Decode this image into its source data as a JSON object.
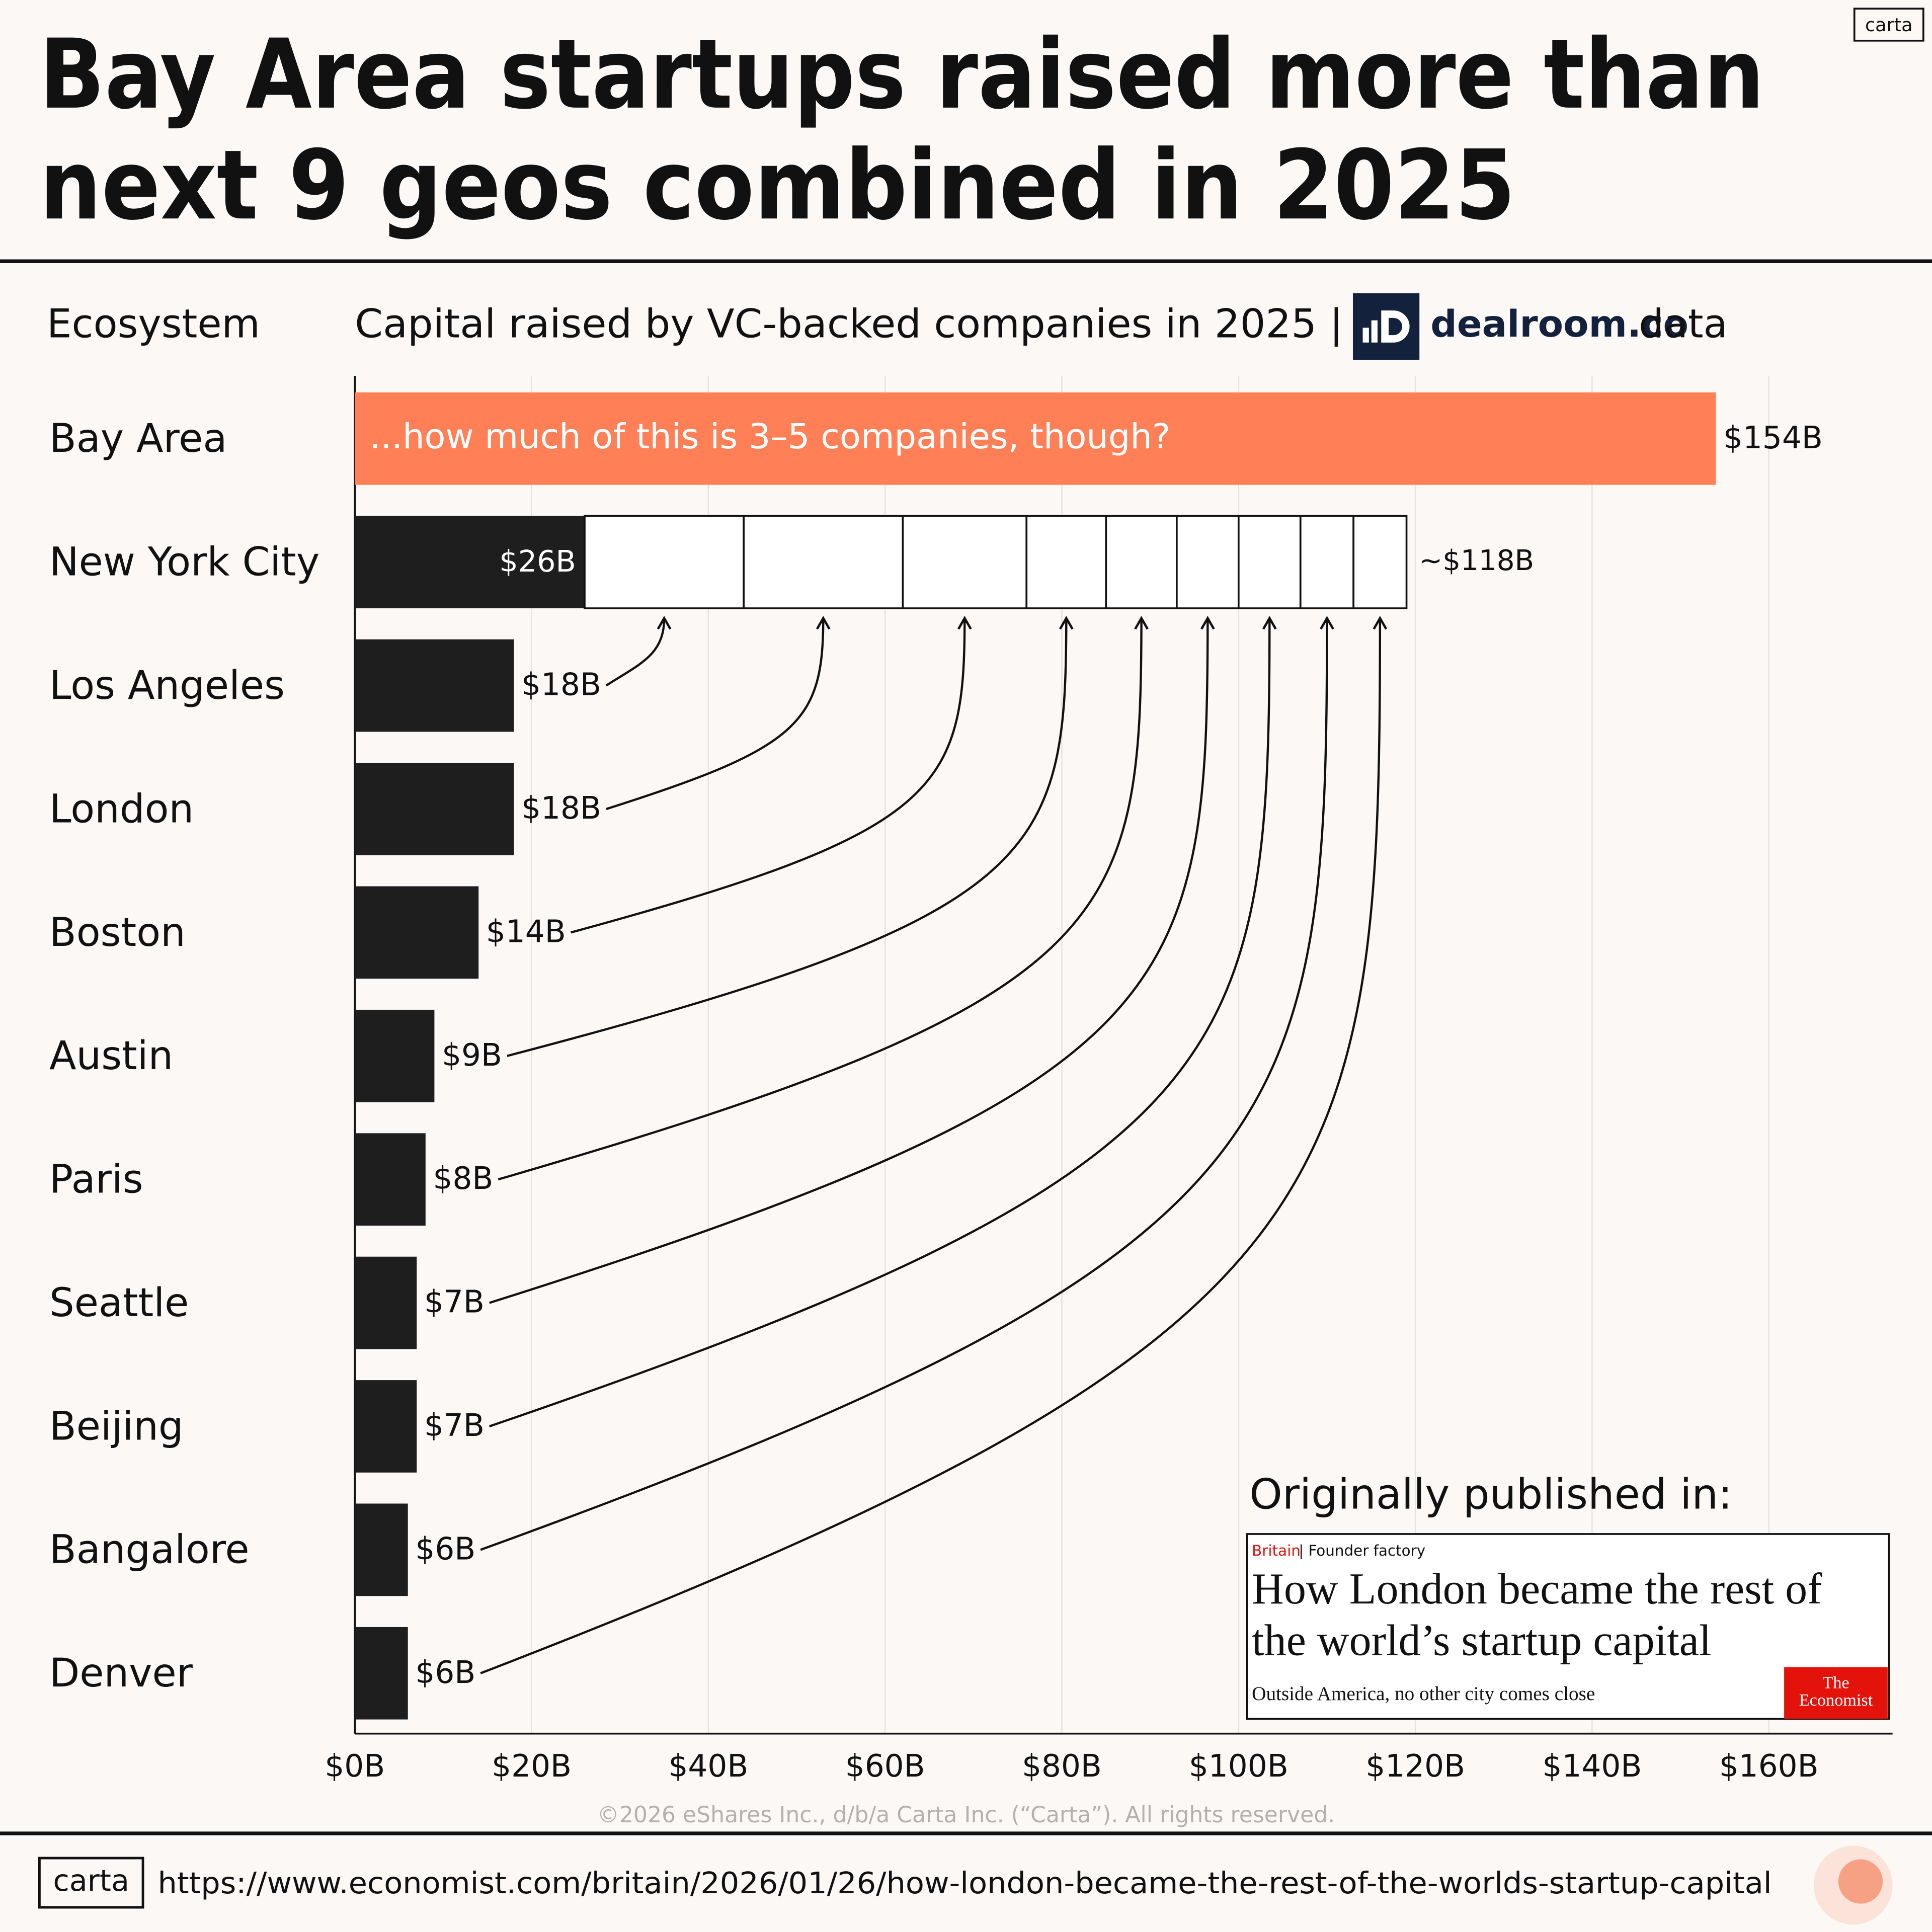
{
  "chart_data": {
    "type": "bar",
    "orientation": "horizontal",
    "title": [
      "Bay Area startups raised more than",
      "next 9 geos combined in 2025"
    ],
    "category_header": "Ecosystem",
    "subtitle": "Capital raised by VC-backed companies in 2025 |",
    "source_logo": "dealroom.co",
    "source_suffix": "data",
    "categories": [
      "Bay Area",
      "New York City",
      "Los Angeles",
      "London",
      "Boston",
      "Austin",
      "Paris",
      "Seattle",
      "Beijing",
      "Bangalore",
      "Denver"
    ],
    "values": [
      154,
      26,
      18,
      18,
      14,
      9,
      8,
      7,
      7,
      6,
      6
    ],
    "value_labels": [
      "$154B",
      "$26B",
      "$18B",
      "$18B",
      "$14B",
      "$9B",
      "$8B",
      "$7B",
      "$7B",
      "$6B",
      "$6B"
    ],
    "bar_colors": [
      "#ff7f57",
      "#1e1e1e",
      "#1e1e1e",
      "#1e1e1e",
      "#1e1e1e",
      "#1e1e1e",
      "#1e1e1e",
      "#1e1e1e",
      "#1e1e1e",
      "#1e1e1e",
      "#1e1e1e"
    ],
    "annotation": "...how much of this is 3–5 companies, though?",
    "stack_total_label": "~$118B",
    "xlim": [
      0,
      174
    ],
    "xticks": [
      {
        "value": 0,
        "label": "$0B"
      },
      {
        "value": 20,
        "label": "$20B"
      },
      {
        "value": 40,
        "label": "$40B"
      },
      {
        "value": 60,
        "label": "$60B"
      },
      {
        "value": 80,
        "label": "$80B"
      },
      {
        "value": 100,
        "label": "$100B"
      },
      {
        "value": 120,
        "label": "$120B"
      },
      {
        "value": 140,
        "label": "$140B"
      },
      {
        "value": 160,
        "label": "$160B"
      }
    ],
    "grid": true
  },
  "publication": {
    "heading": "Originally published in:",
    "section": "Britain",
    "rubric": "| Founder factory",
    "headline": [
      "How London became the rest of",
      "the world’s startup capital"
    ],
    "standfirst": "Outside America, no other city comes close",
    "logo": [
      "The",
      "Economist"
    ]
  },
  "footer": {
    "copyright": "©2026 eShares Inc., d/b/a Carta Inc. (“Carta”). All rights reserved.",
    "brand": "carta",
    "url": "https://www.economist.com/britain/2026/01/26/how-london-became-the-rest-of-the-worlds-startup-capital"
  }
}
